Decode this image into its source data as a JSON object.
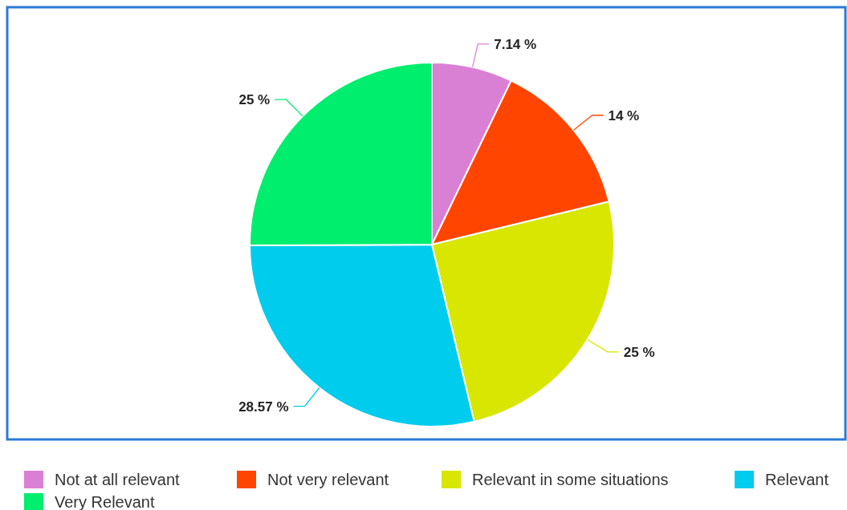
{
  "chart_data": {
    "type": "pie",
    "categories": [
      "Not at all relevant",
      "Not very relevant",
      "Relevant in some situations",
      "Relevant",
      "Very Relevant"
    ],
    "values": [
      7.14,
      14,
      25,
      28.57,
      25
    ],
    "colors": [
      "#da80d4",
      "#ff4500",
      "#d8e600",
      "#00ccee",
      "#00ee6e"
    ],
    "value_labels": [
      "7.14 %",
      "14 %",
      "25 %",
      "28.57 %",
      "25 %"
    ],
    "legend": "bottom"
  }
}
